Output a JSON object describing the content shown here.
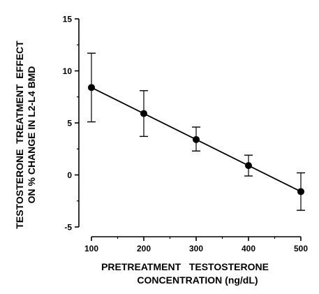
{
  "chart_data": {
    "type": "scatter",
    "x": [
      100,
      200,
      300,
      400,
      500
    ],
    "series": [
      {
        "y": [
          8.4,
          5.9,
          3.4,
          0.9,
          -1.6
        ],
        "error_upper": [
          11.7,
          8.1,
          4.6,
          1.9,
          0.2
        ],
        "error_lower": [
          5.1,
          3.7,
          2.3,
          -0.1,
          -3.4
        ],
        "trend_line": {
          "from": [
            100,
            8.4
          ],
          "to": [
            500,
            -1.6
          ]
        }
      }
    ],
    "xticks": [
      "100",
      "200",
      "300",
      "400",
      "500"
    ],
    "yticks": [
      "15",
      "10",
      "5",
      "0",
      "-5"
    ],
    "xlim": [
      100,
      500
    ],
    "ylim": [
      -5,
      15
    ],
    "xlabel": [
      "PRETREATMENT   TESTOSTERONE",
      "CONCENTRATION (ng/dL)"
    ],
    "ylabel": [
      "TESTOSTERONE  TREATMENT  EFFECT",
      "ON % CHANGE IN L2-L4 BMD"
    ],
    "grid": false,
    "colors": {
      "marks": "#000000",
      "background": "#ffffff"
    }
  }
}
